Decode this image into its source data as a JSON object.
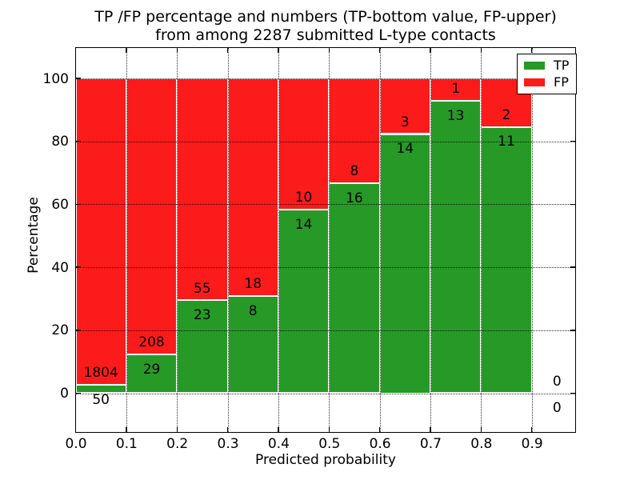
{
  "title": {
    "line1": "TP /FP percentage and numbers (TP-bottom value, FP-upper)",
    "line2": "from among 2287 submitted L-type contacts"
  },
  "axes": {
    "xlabel": "Predicted probability",
    "ylabel": "Percentage"
  },
  "legend": {
    "position": "upper right",
    "entries": [
      {
        "label": "TP",
        "color": "#279927"
      },
      {
        "label": "FP",
        "color": "#fb1b1b"
      }
    ]
  },
  "chart_data": {
    "type": "bar",
    "stacked": true,
    "normalized": "each bar totals 100%",
    "title": "TP /FP percentage and numbers (TP-bottom value, FP-upper) from among 2287 submitted L-type contacts",
    "xlabel": "Predicted probability",
    "ylabel": "Percentage",
    "total_submitted": 2287,
    "bin_width": 0.1,
    "bins": [
      {
        "range": "0.0-0.1",
        "tp": 50,
        "fp": 1804,
        "tp_percent": 2.7
      },
      {
        "range": "0.1-0.2",
        "tp": 29,
        "fp": 208,
        "tp_percent": 12.24
      },
      {
        "range": "0.2-0.3",
        "tp": 23,
        "fp": 55,
        "tp_percent": 29.49
      },
      {
        "range": "0.3-0.4",
        "tp": 8,
        "fp": 18,
        "tp_percent": 30.77
      },
      {
        "range": "0.4-0.5",
        "tp": 14,
        "fp": 10,
        "tp_percent": 58.33
      },
      {
        "range": "0.5-0.6",
        "tp": 16,
        "fp": 8,
        "tp_percent": 66.67
      },
      {
        "range": "0.6-0.7",
        "tp": 14,
        "fp": 3,
        "tp_percent": 82.35
      },
      {
        "range": "0.7-0.8",
        "tp": 13,
        "fp": 1,
        "tp_percent": 92.86
      },
      {
        "range": "0.8-0.9",
        "tp": 11,
        "fp": 2,
        "tp_percent": 84.62
      },
      {
        "range": "0.9-1.0",
        "tp": 0,
        "fp": 0,
        "tp_percent": null
      }
    ],
    "colors": {
      "tp": "#279927",
      "fp": "#fb1b1b"
    },
    "xticks": [
      0.0,
      0.1,
      0.2,
      0.3,
      0.4,
      0.5,
      0.6,
      0.7,
      0.8,
      0.9
    ],
    "xtick_labels": [
      "0.0",
      "0.1",
      "0.2",
      "0.3",
      "0.4",
      "0.5",
      "0.6",
      "0.7",
      "0.8",
      "0.9"
    ],
    "yticks": [
      0,
      20,
      40,
      60,
      80,
      100
    ],
    "xlim": [
      0,
      0.985
    ],
    "ylim": [
      -12.2,
      109.8
    ],
    "grid": {
      "style": "dotted",
      "color": "#000000",
      "over_bars": true
    },
    "bar_edge_color": "#ffffff",
    "legend_position": "upper right"
  }
}
